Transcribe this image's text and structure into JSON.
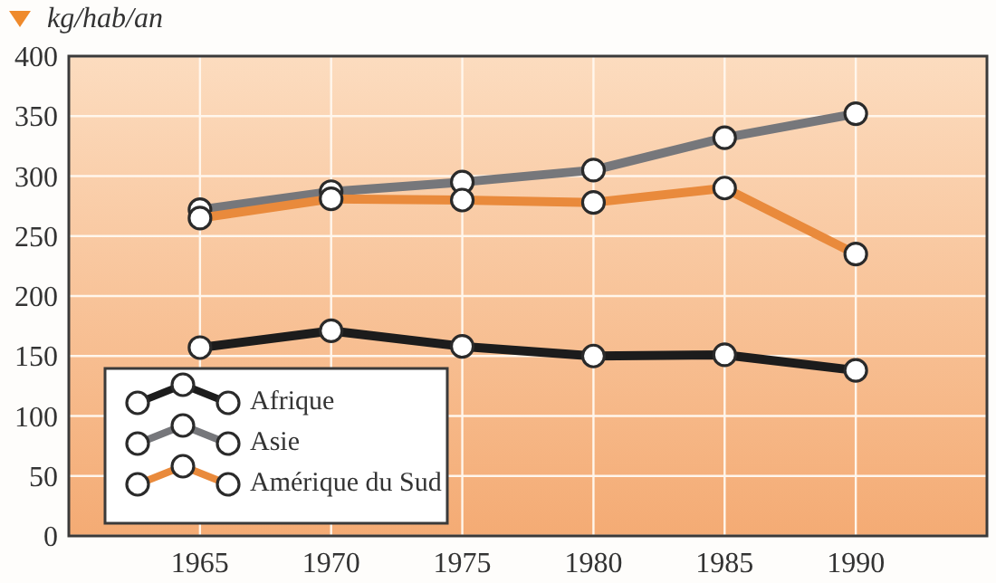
{
  "chart_data": {
    "type": "line",
    "ylabel": "kg/hab/an",
    "x": [
      1965,
      1970,
      1975,
      1980,
      1985,
      1990
    ],
    "xlim": [
      1960,
      1995
    ],
    "xticks": [
      1965,
      1970,
      1975,
      1980,
      1985,
      1990
    ],
    "ylim": [
      0,
      400
    ],
    "yticks": [
      0,
      50,
      100,
      150,
      200,
      250,
      300,
      350,
      400
    ],
    "series": [
      {
        "name": "Afrique",
        "color": "#1c1c1c",
        "values": [
          157,
          171,
          158,
          150,
          151,
          138
        ]
      },
      {
        "name": "Asie",
        "color": "#76777b",
        "values": [
          272,
          287,
          295,
          305,
          332,
          352
        ]
      },
      {
        "name": "Amérique du Sud",
        "color": "#e98a3c",
        "values": [
          265,
          281,
          280,
          278,
          290,
          235
        ]
      }
    ],
    "grid": true,
    "legend": "bottom left",
    "marker": "circle",
    "line_style": "solid"
  }
}
